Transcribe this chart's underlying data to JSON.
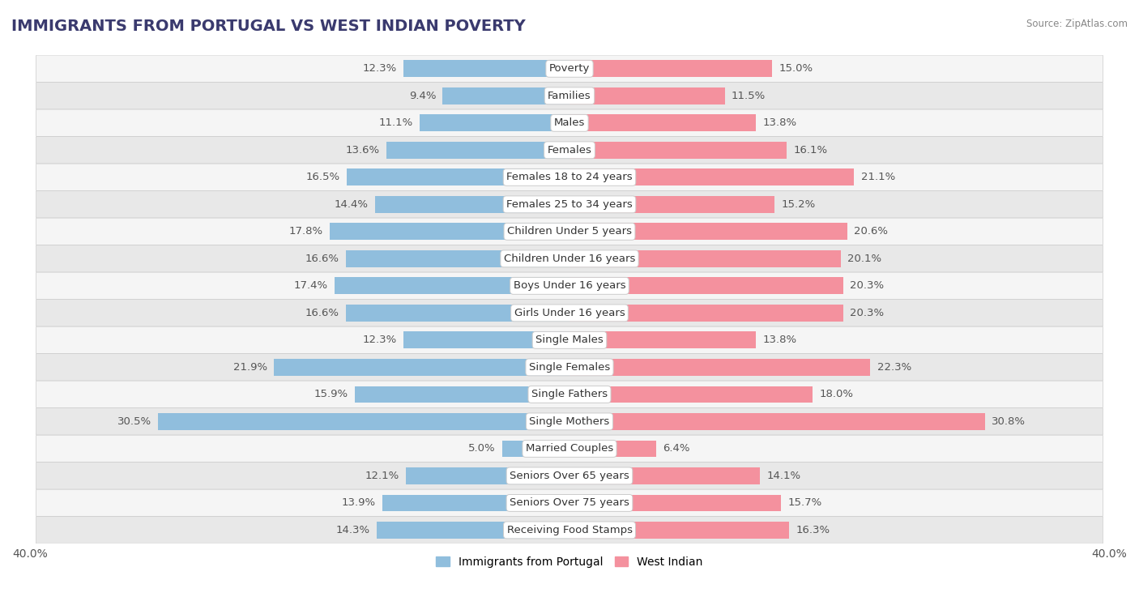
{
  "title": "IMMIGRANTS FROM PORTUGAL VS WEST INDIAN POVERTY",
  "source": "Source: ZipAtlas.com",
  "categories": [
    "Poverty",
    "Families",
    "Males",
    "Females",
    "Females 18 to 24 years",
    "Females 25 to 34 years",
    "Children Under 5 years",
    "Children Under 16 years",
    "Boys Under 16 years",
    "Girls Under 16 years",
    "Single Males",
    "Single Females",
    "Single Fathers",
    "Single Mothers",
    "Married Couples",
    "Seniors Over 65 years",
    "Seniors Over 75 years",
    "Receiving Food Stamps"
  ],
  "portugal_values": [
    12.3,
    9.4,
    11.1,
    13.6,
    16.5,
    14.4,
    17.8,
    16.6,
    17.4,
    16.6,
    12.3,
    21.9,
    15.9,
    30.5,
    5.0,
    12.1,
    13.9,
    14.3
  ],
  "west_indian_values": [
    15.0,
    11.5,
    13.8,
    16.1,
    21.1,
    15.2,
    20.6,
    20.1,
    20.3,
    20.3,
    13.8,
    22.3,
    18.0,
    30.8,
    6.4,
    14.1,
    15.7,
    16.3
  ],
  "portugal_color": "#90bedd",
  "west_indian_color": "#f4919e",
  "fig_background": "#ffffff",
  "row_odd_color": "#f5f5f5",
  "row_even_color": "#e8e8e8",
  "row_border_color": "#cccccc",
  "axis_limit": 40.0,
  "bar_height": 0.62,
  "label_fontsize": 9.5,
  "title_fontsize": 14,
  "value_fontsize": 9.5,
  "legend_fontsize": 10,
  "title_color": "#3a3a6e",
  "value_color": "#555555",
  "label_color": "#333333"
}
